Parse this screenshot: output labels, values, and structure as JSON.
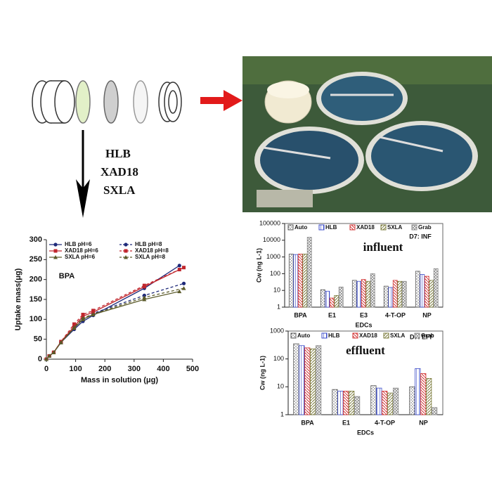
{
  "diagram": {
    "labels": [
      "HLB",
      "XAD18",
      "SXLA"
    ]
  },
  "chart_data": [
    {
      "type": "line",
      "annotations": [
        "BPA"
      ],
      "xlabel": "Mass in solution (μg)",
      "ylabel": "Uptake mass(μg)",
      "xlim": [
        0,
        500
      ],
      "xticks": [
        0,
        100,
        200,
        300,
        400,
        500
      ],
      "ylim": [
        0,
        300
      ],
      "yticks": [
        0,
        50,
        100,
        150,
        200,
        250,
        300
      ],
      "series": [
        {
          "name": "HLB pH=6",
          "color": "#1f2a7a",
          "marker": "circle",
          "dashed": false,
          "x": [
            0,
            10,
            25,
            50,
            95,
            125,
            160,
            335,
            455
          ],
          "values": [
            0,
            8,
            17,
            42,
            75,
            95,
            110,
            178,
            235
          ]
        },
        {
          "name": "HLB pH=8",
          "color": "#1f2a7a",
          "marker": "circle",
          "dashed": true,
          "x": [
            0,
            10,
            25,
            50,
            95,
            125,
            160,
            335,
            470
          ],
          "values": [
            0,
            8,
            17,
            42,
            80,
            100,
            115,
            160,
            190
          ]
        },
        {
          "name": "XAD18 pH=6",
          "color": "#c0262d",
          "marker": "square",
          "dashed": false,
          "x": [
            0,
            10,
            25,
            50,
            95,
            125,
            160,
            335,
            470
          ],
          "values": [
            0,
            8,
            17,
            44,
            82,
            108,
            118,
            182,
            230
          ]
        },
        {
          "name": "XAD18 pH=8",
          "color": "#c0262d",
          "marker": "square",
          "dashed": true,
          "x": [
            0,
            10,
            25,
            50,
            95,
            125,
            160,
            335,
            455
          ],
          "values": [
            0,
            8,
            17,
            44,
            88,
            112,
            122,
            185,
            225
          ]
        },
        {
          "name": "SXLA pH=6",
          "color": "#5b5a2a",
          "marker": "triangle",
          "dashed": false,
          "x": [
            0,
            10,
            25,
            50,
            95,
            125,
            160,
            335,
            455
          ],
          "values": [
            0,
            8,
            17,
            42,
            78,
            100,
            112,
            150,
            170
          ]
        },
        {
          "name": "SXLA pH=8",
          "color": "#5b5a2a",
          "marker": "triangle",
          "dashed": true,
          "x": [
            0,
            10,
            25,
            50,
            95,
            125,
            160,
            335,
            470
          ],
          "values": [
            0,
            8,
            17,
            42,
            80,
            103,
            113,
            155,
            178
          ]
        }
      ]
    },
    {
      "type": "bar",
      "log": true,
      "annotations": [
        "influent",
        "D7: INF"
      ],
      "xlabel": "EDCs",
      "ylabel": "Cw (ng L-1)",
      "categories": [
        "BPA",
        "E1",
        "E3",
        "4-T-OP",
        "NP"
      ],
      "ylim": [
        1,
        100000
      ],
      "yticks": [
        1,
        10,
        100,
        1000,
        10000,
        100000
      ],
      "series": [
        {
          "name": "Auto",
          "color": "#555555",
          "values": [
            1500,
            11,
            40,
            18,
            140
          ]
        },
        {
          "name": "HLB",
          "color": "#3b4bc8",
          "values": [
            1400,
            9,
            35,
            15,
            90
          ]
        },
        {
          "name": "XAD18",
          "color": "#d03030",
          "values": [
            1500,
            3.5,
            45,
            40,
            70
          ]
        },
        {
          "name": "SXLA",
          "color": "#7a7a3a",
          "values": [
            1500,
            5,
            35,
            35,
            40
          ]
        },
        {
          "name": "Grab",
          "color": "#888888",
          "values": [
            15000,
            16,
            100,
            35,
            200
          ]
        }
      ]
    },
    {
      "type": "bar",
      "log": true,
      "annotations": [
        "effluent",
        "D7: EFF"
      ],
      "xlabel": "EDCs",
      "ylabel": "Cw (ng L-1)",
      "categories": [
        "BPA",
        "E1",
        "4-T-OP",
        "NP"
      ],
      "ylim": [
        1,
        1000
      ],
      "yticks": [
        1,
        10,
        100,
        1000
      ],
      "series": [
        {
          "name": "Auto",
          "color": "#555555",
          "values": [
            350,
            8,
            11,
            10
          ]
        },
        {
          "name": "HLB",
          "color": "#3b4bc8",
          "values": [
            300,
            7,
            9,
            45
          ]
        },
        {
          "name": "XAD18",
          "color": "#d03030",
          "values": [
            250,
            7,
            7,
            30
          ]
        },
        {
          "name": "SXLA",
          "color": "#7a7a3a",
          "values": [
            230,
            7,
            6,
            20
          ]
        },
        {
          "name": "Grab",
          "color": "#888888",
          "values": [
            300,
            4.5,
            9,
            1.8
          ]
        }
      ]
    }
  ]
}
